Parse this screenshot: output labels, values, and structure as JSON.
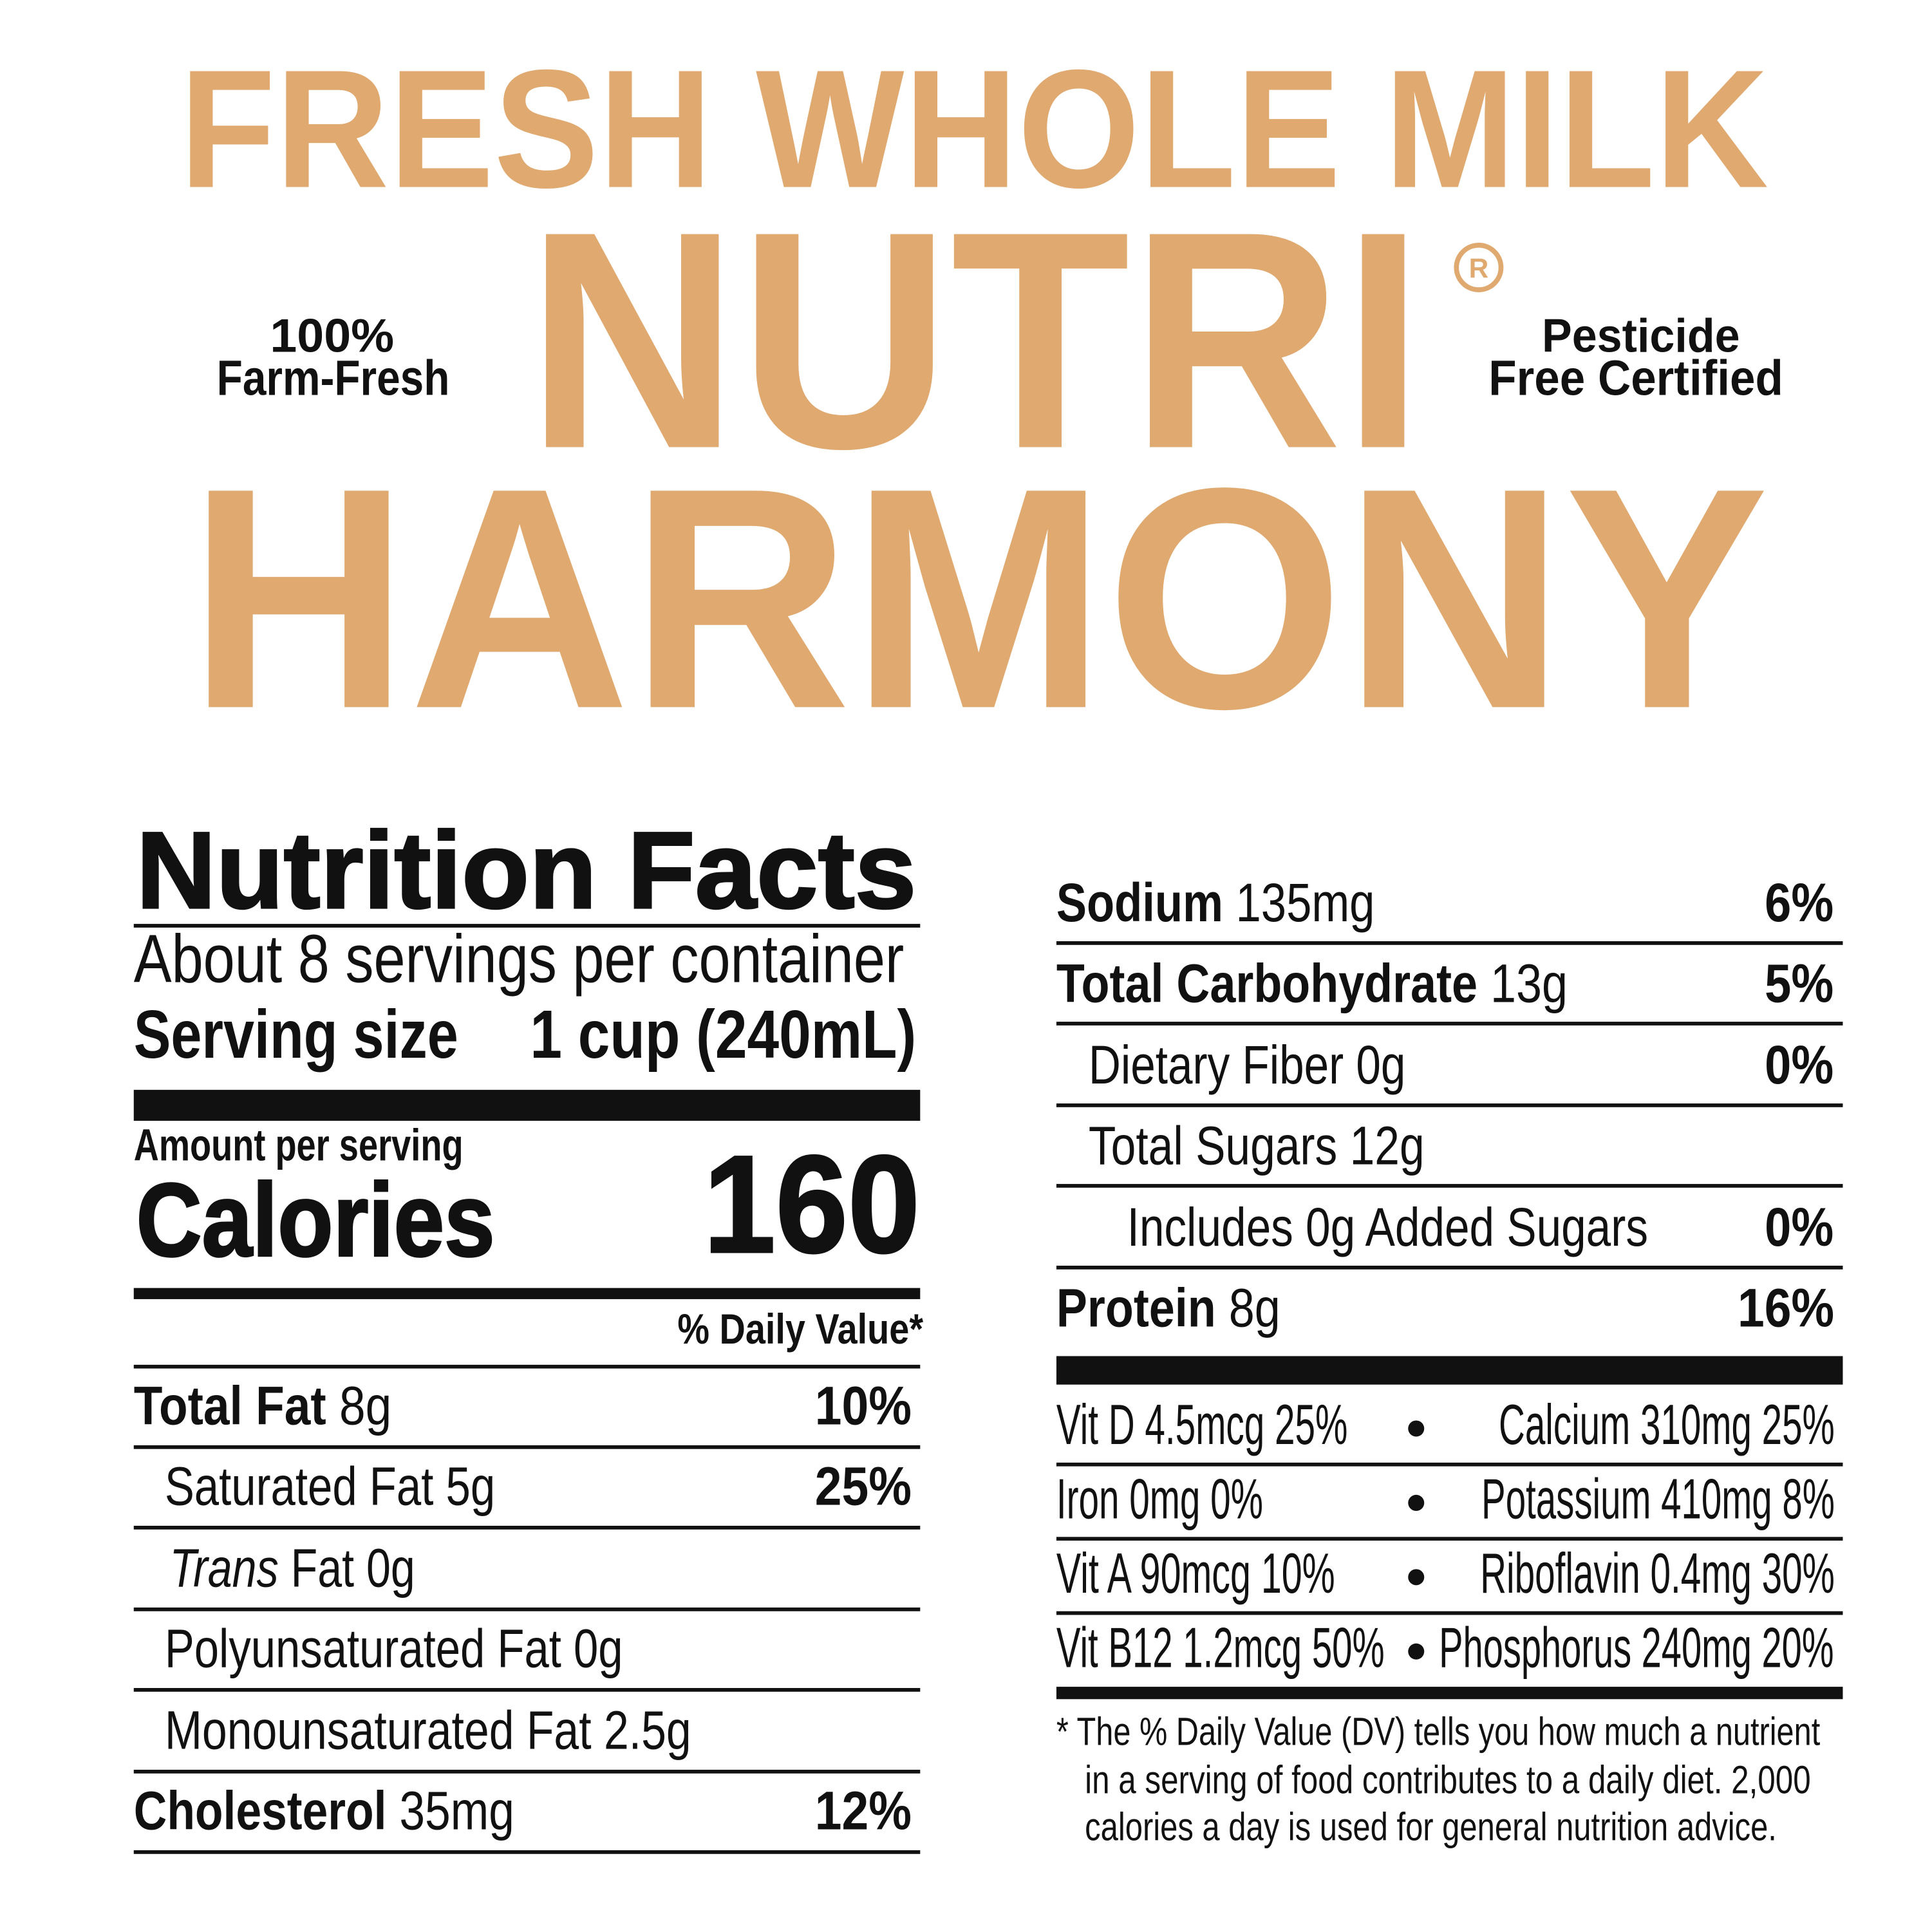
{
  "brand": {
    "subtitle": "FRESH WHOLE MILK",
    "name_line1": "NUTRI",
    "name_line2": "HARMONY",
    "registered_mark": "®",
    "color": "#DFA970"
  },
  "claims": {
    "left_line1": "100%",
    "left_line2": "Farm-Fresh",
    "right_line1": "Pesticide",
    "right_line2": "Free Certified"
  },
  "label": {
    "title": "Nutrition Facts",
    "servings": "About 8 servings per container",
    "serving_size_label": "Serving size",
    "serving_size_value": "1 cup (240mL)",
    "amount_per_serving": "Amount per serving",
    "calories_label": "Calories",
    "calories_value": "160",
    "dv_header": "% Daily Value*",
    "left_rows": [
      {
        "name": "Total Fat",
        "amount": "8g",
        "dv": "10%"
      },
      {
        "name": "Saturated Fat",
        "amount": "5g",
        "dv": "25%"
      },
      {
        "name_italic": "Trans",
        "name": "Fat",
        "amount": "0g",
        "dv": ""
      },
      {
        "name": "Polyunsaturated Fat",
        "amount": "0g",
        "dv": ""
      },
      {
        "name": "Monounsaturated Fat",
        "amount": "2.5g",
        "dv": ""
      },
      {
        "name": "Cholesterol",
        "amount": "35mg",
        "dv": "12%"
      }
    ],
    "right_rows": [
      {
        "name": "Sodium",
        "amount": "135mg",
        "dv": "6%"
      },
      {
        "name": "Total Carbohydrate",
        "amount": "13g",
        "dv": "5%"
      },
      {
        "name": "Dietary Fiber",
        "amount": "0g",
        "dv": "0%"
      },
      {
        "name": "Total Sugars",
        "amount": "12g",
        "dv": ""
      },
      {
        "name": "Includes 0g Added Sugars",
        "amount": "",
        "dv": "0%"
      },
      {
        "name": "Protein",
        "amount": "8g",
        "dv": "16%"
      }
    ],
    "vitamins": [
      {
        "left": "Vit D 4.5mcg 25%",
        "right": "Calcium 310mg 25%"
      },
      {
        "left": "Iron 0mg 0%",
        "right": "Potassium 410mg 8%"
      },
      {
        "left": "Vit A 90mcg 10%",
        "right": "Riboflavin 0.4mg 30%"
      },
      {
        "left": "Vit B12 1.2mcg 50%",
        "right": "Phosphorus 240mg 20%"
      }
    ],
    "footnote": [
      "* The % Daily Value (DV) tells you how much a nutrient",
      "in a serving of food contributes to a daily diet. 2,000",
      "calories a day is used for general nutrition advice."
    ]
  }
}
